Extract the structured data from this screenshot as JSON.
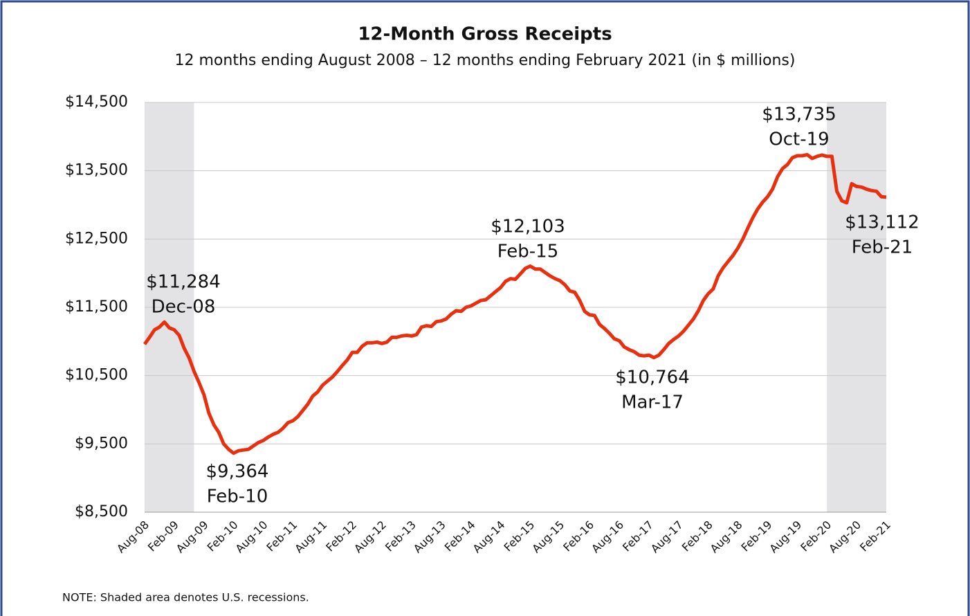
{
  "chart_data": {
    "type": "line",
    "title": "12-Month Gross Receipts",
    "subtitle": "12 months ending August 2008 – 12 months ending February 2021 (in $ millions)",
    "note": "NOTE: Shaded area denotes U.S. recessions.",
    "categories": [
      "Aug-08",
      null,
      null,
      null,
      null,
      null,
      "Feb-09",
      null,
      null,
      null,
      null,
      null,
      "Aug-09",
      null,
      null,
      null,
      null,
      null,
      "Feb-10",
      null,
      null,
      null,
      null,
      null,
      "Aug-10",
      null,
      null,
      null,
      null,
      null,
      "Feb-11",
      null,
      null,
      null,
      null,
      null,
      "Aug-11",
      null,
      null,
      null,
      null,
      null,
      "Feb-12",
      null,
      null,
      null,
      null,
      null,
      "Aug-12",
      null,
      null,
      null,
      null,
      null,
      "Feb-13",
      null,
      null,
      null,
      null,
      null,
      "Aug-13",
      null,
      null,
      null,
      null,
      null,
      "Feb-14",
      null,
      null,
      null,
      null,
      null,
      "Aug-14",
      null,
      null,
      null,
      null,
      null,
      "Feb-15",
      null,
      null,
      null,
      null,
      null,
      "Aug-15",
      null,
      null,
      null,
      null,
      null,
      "Feb-16",
      null,
      null,
      null,
      null,
      null,
      "Aug-16",
      null,
      null,
      null,
      null,
      null,
      "Feb-17",
      null,
      null,
      null,
      null,
      null,
      "Aug-17",
      null,
      null,
      null,
      null,
      null,
      "Feb-18",
      null,
      null,
      null,
      null,
      null,
      "Aug-18",
      null,
      null,
      null,
      null,
      null,
      "Feb-19",
      null,
      null,
      null,
      null,
      null,
      "Aug-19",
      null,
      null,
      null,
      null,
      null,
      "Feb-20",
      null,
      null,
      null,
      null,
      null,
      "Aug-20",
      null,
      null,
      null,
      null,
      null,
      "Feb-21"
    ],
    "series": [
      {
        "name": "12-Month Gross Receipts",
        "color": "#e8300f",
        "values": [
          10960,
          11060,
          11170,
          11210,
          11284,
          11200,
          11170,
          11090,
          10900,
          10760,
          10560,
          10400,
          10220,
          9950,
          9780,
          9670,
          9500,
          9420,
          9364,
          9400,
          9410,
          9420,
          9470,
          9520,
          9550,
          9600,
          9640,
          9670,
          9730,
          9810,
          9840,
          9900,
          9990,
          10080,
          10200,
          10260,
          10360,
          10420,
          10480,
          10560,
          10650,
          10730,
          10840,
          10840,
          10930,
          10980,
          10980,
          10990,
          10970,
          10990,
          11060,
          11060,
          11080,
          11090,
          11080,
          11100,
          11210,
          11230,
          11220,
          11290,
          11300,
          11330,
          11400,
          11450,
          11440,
          11500,
          11520,
          11560,
          11600,
          11610,
          11670,
          11730,
          11790,
          11880,
          11920,
          11910,
          11990,
          12070,
          12103,
          12060,
          12060,
          12010,
          11960,
          11920,
          11890,
          11830,
          11740,
          11720,
          11600,
          11440,
          11390,
          11380,
          11250,
          11190,
          11120,
          11040,
          11010,
          10920,
          10880,
          10850,
          10800,
          10790,
          10800,
          10764,
          10800,
          10880,
          10970,
          11030,
          11080,
          11150,
          11240,
          11330,
          11450,
          11600,
          11700,
          11770,
          11960,
          12080,
          12170,
          12260,
          12370,
          12500,
          12660,
          12810,
          12940,
          13040,
          13120,
          13230,
          13410,
          13530,
          13590,
          13690,
          13720,
          13720,
          13735,
          13680,
          13710,
          13730,
          13710,
          13710,
          13200,
          13060,
          13030,
          13310,
          13270,
          13260,
          13230,
          13210,
          13200,
          13120,
          13112
        ]
      }
    ],
    "ylim": [
      8500,
      14500
    ],
    "yticks": [
      {
        "value": 8500,
        "label": "$8,500"
      },
      {
        "value": 9500,
        "label": "$9,500"
      },
      {
        "value": 10500,
        "label": "$10,500"
      },
      {
        "value": 11500,
        "label": "$11,500"
      },
      {
        "value": 12500,
        "label": "$12,500"
      },
      {
        "value": 13500,
        "label": "$13,500"
      },
      {
        "value": 14500,
        "label": "$14,500"
      }
    ],
    "grid": true,
    "annotations": [
      {
        "label": "$11,284",
        "date": "Dec-08"
      },
      {
        "label": "$9,364",
        "date": "Feb-10"
      },
      {
        "label": "$12,103",
        "date": "Feb-15"
      },
      {
        "label": "$10,764",
        "date": "Mar-17"
      },
      {
        "label": "$13,735",
        "date": "Oct-19"
      },
      {
        "label": "$13,112",
        "date": "Feb-21"
      }
    ]
  }
}
